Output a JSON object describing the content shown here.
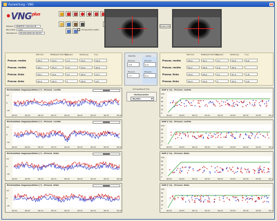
{
  "window": {
    "title": "Auswertung - VNG"
  },
  "logo": {
    "text": "VNG",
    "sup": "plus"
  },
  "patient": {
    "patient_label": "Patient:",
    "patient_value": "PHIMTIT, Claudia M.",
    "benutzer_label": "Benutzer:",
    "benutzer_value": "user",
    "testdatum_label": "Testdatum:",
    "testdatum_value": "05.08.2009 01:16:35"
  },
  "toolbar": {
    "checkbox_label": "Endpunkte kalibr."
  },
  "video": {
    "button_label": "Video fds"
  },
  "table_left": {
    "headers": [
      "SCP max",
      "Mittelwert SCP [°/s]",
      "Frequenz",
      "Verteilung",
      "T [s]"
    ],
    "rows": [
      {
        "label": "Provoz. rechts",
        "values": [
          "28,2",
          "19,3",
          "2,4",
          "34,1",
          "16,9"
        ]
      },
      {
        "label": "Provoz. rechts",
        "values": [
          "49,1",
          "29,3",
          "2,6",
          "34,2",
          "40,4"
        ]
      },
      {
        "label": "Provoz. links",
        "values": [
          "29,1",
          "19,1",
          "3,2",
          "26,4",
          "12,7"
        ]
      },
      {
        "label": "Provoz. links",
        "values": [
          "92,0",
          "26,3",
          "3",
          "28,9",
          "4,8"
        ]
      }
    ]
  },
  "mid_panel": {
    "rechts_label": "Rechts",
    "links_label": "Links",
    "rows": [
      {
        "label": "Provoz.",
        "value": "3,8",
        "label2": "Provoz.",
        "value2": "6,9"
      },
      {
        "label": "Provoz.",
        "value": "7,7",
        "label2": "Provoz.",
        "value2": "6,3"
      }
    ]
  },
  "schwellwert": {
    "title": "Schwellwert [%]",
    "label": "Testauswahl",
    "selected": "Rechts"
  },
  "table_right": {
    "headers": [
      "SCP max",
      "Mittelwert SCP [°/s]",
      "Frequenz",
      "Verteilung",
      "T [s]"
    ],
    "rows": [
      {
        "label": "Provoz. rechts",
        "values": [
          "28,4",
          "32,1",
          "3,7",
          "34,4",
          "6,6"
        ]
      },
      {
        "label": "Provoz. rechts",
        "values": [
          "60,2",
          "36,9",
          "2,6",
          "36,2",
          "-"
        ]
      },
      {
        "label": "Provoz. links",
        "values": [
          "34,4",
          "26,4",
          "3,1",
          "31,4",
          "n.8"
        ]
      },
      {
        "label": "Provoz. links",
        "values": [
          "59,3",
          "34,4",
          "2",
          "30,4",
          "4,8"
        ]
      }
    ]
  },
  "charts_left_titles": [
    "Horizontale Augenposition [°] - Provoz. rechts",
    "Horizontale Augenposition [°] - Provoz. rechts",
    "Horizontale Augenposition [°] - Provoz. links",
    "Horizontale Augenposition [°] - Provoz. links"
  ],
  "charts_right_titles": [
    "GSP [°/s] - Provoz. rechts",
    "GSP [°/s] - Provoz. rechts",
    "GSP [°/s] - Provoz. links",
    "GSP [°/s] - Provoz. links"
  ],
  "x_ticks": [
    "00:00",
    "00:05",
    "00:10",
    "00:15",
    "00:20",
    "00:25",
    "00:30",
    "00:35",
    "00:40"
  ],
  "left_y_ticks": [
    "10",
    "0",
    "-10"
  ],
  "right_y_ticks": [
    "100",
    "80",
    "60",
    "40",
    "20",
    "0"
  ],
  "colors": {
    "red": "#d01818",
    "blue": "#2233cc",
    "green": "#2a9a2a",
    "accent": "#3b78d8"
  },
  "icons": [
    "calibrate-icon",
    "record-icon",
    "play-icon",
    "target-icon",
    "eye-icon",
    "settings-icon",
    "chart-icon",
    "print-icon",
    "zoom-in-icon",
    "zoom-out-icon",
    "cursor-icon"
  ]
}
